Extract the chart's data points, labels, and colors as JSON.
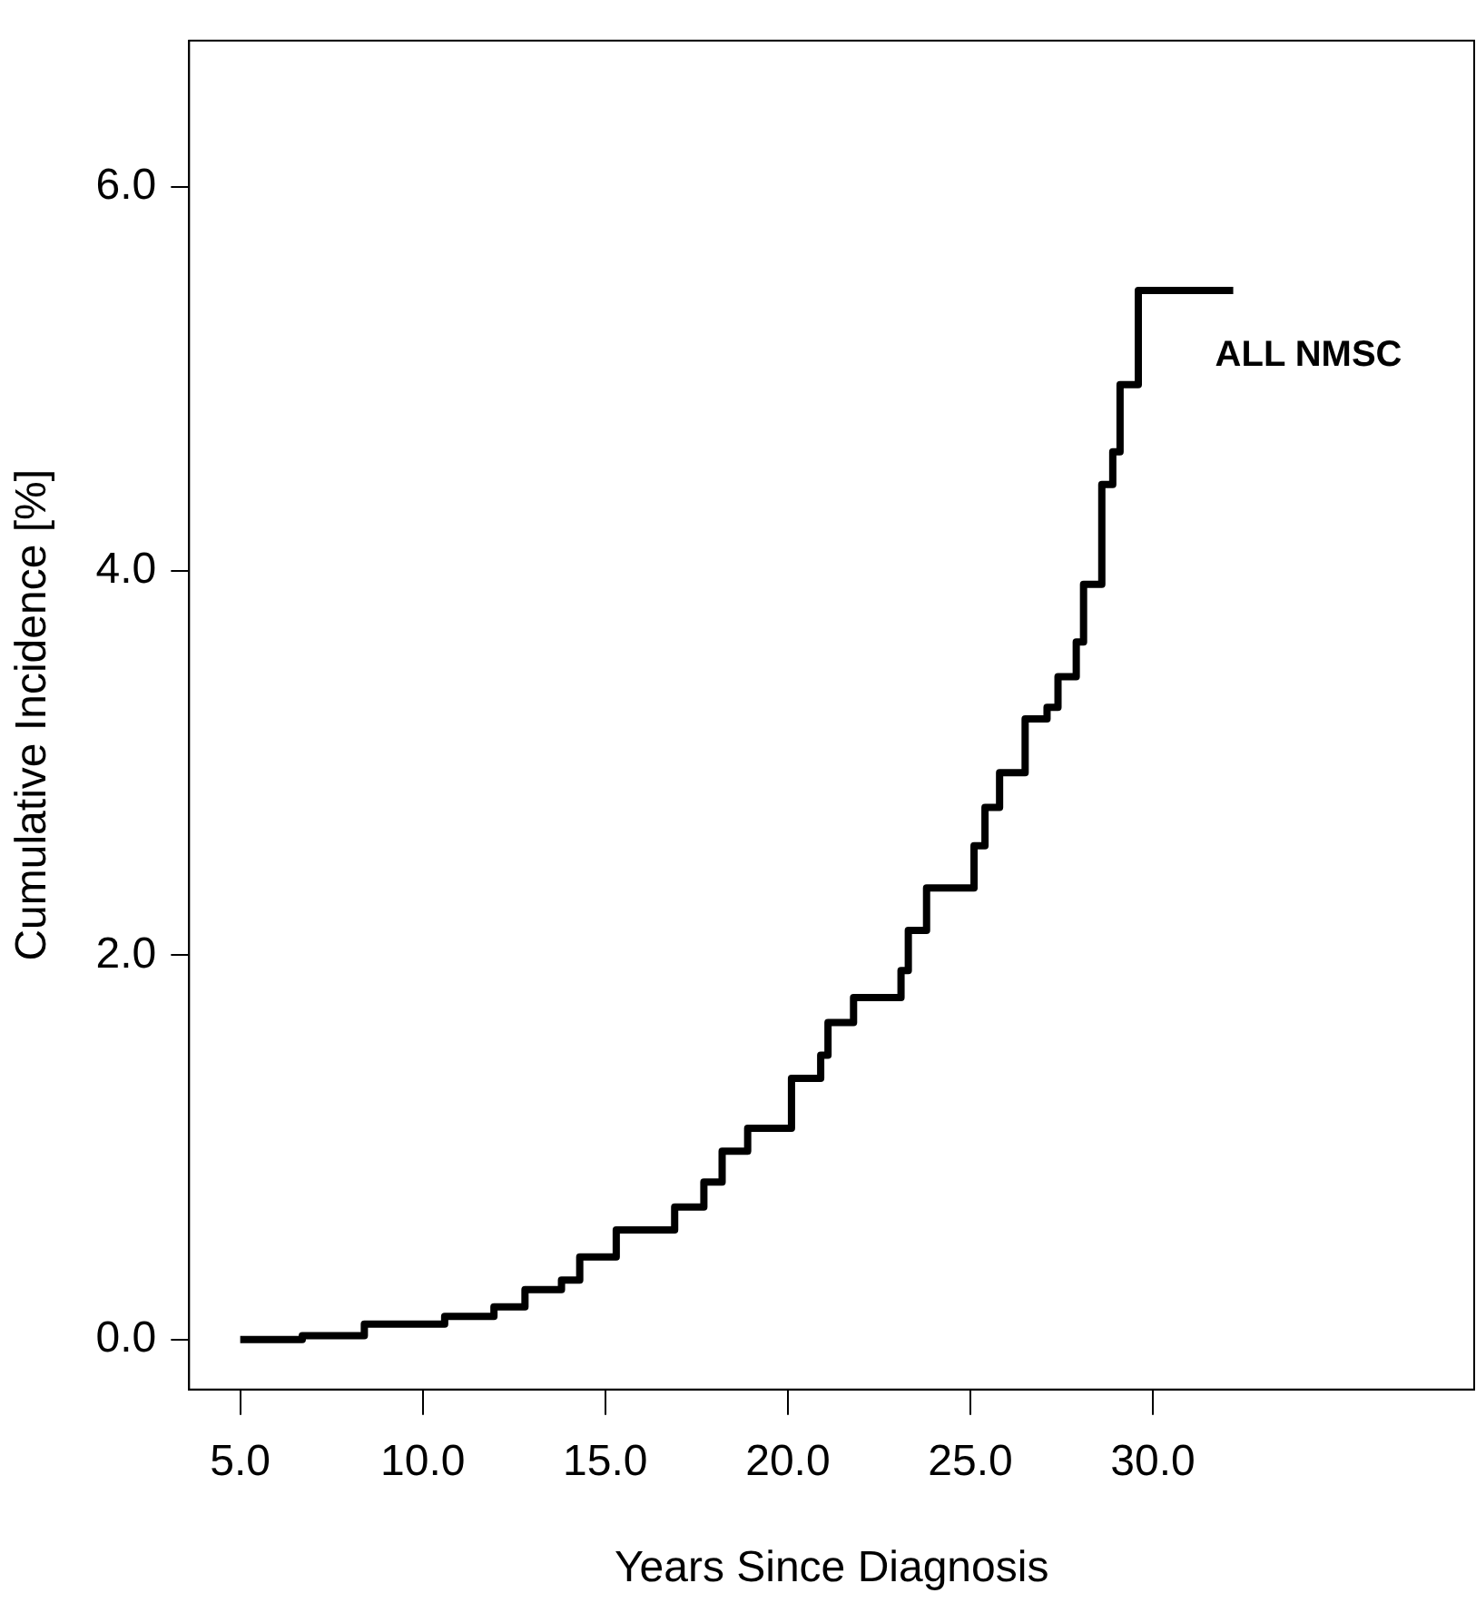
{
  "chart_data": {
    "type": "step",
    "xlabel": "Years Since Diagnosis",
    "ylabel": "Cumulative Incidence [%]",
    "x": [
      5,
      6.7,
      8.4,
      10.6,
      11.95,
      12.8,
      13.8,
      14.3,
      15.3,
      16.9,
      17.7,
      18.2,
      18.9,
      20.1,
      20.9,
      21.1,
      21.8,
      23.1,
      23.3,
      23.8,
      24.5,
      25.1,
      25.4,
      25.8,
      26.5,
      27.1,
      27.4,
      27.9,
      28.1,
      28.6,
      28.9,
      29.1,
      29.6,
      32.2
    ],
    "values": [
      0,
      0.02,
      0.08,
      0.12,
      0.17,
      0.26,
      0.31,
      0.43,
      0.57,
      0.69,
      0.82,
      0.98,
      1.1,
      1.36,
      1.48,
      1.65,
      1.78,
      1.92,
      2.13,
      2.35,
      2.35,
      2.57,
      2.77,
      2.95,
      3.23,
      3.29,
      3.45,
      3.63,
      3.93,
      4.45,
      4.62,
      4.97,
      5.46,
      5.46
    ],
    "color": "#000000",
    "xlim": [
      3.6,
      38.8
    ],
    "ylim": [
      -0.26,
      6.76
    ],
    "xticks": [
      {
        "value": 5,
        "label": "5.0"
      },
      {
        "value": 10,
        "label": "10.0"
      },
      {
        "value": 15,
        "label": "15.0"
      },
      {
        "value": 20,
        "label": "20.0"
      },
      {
        "value": 25,
        "label": "25.0"
      },
      {
        "value": 30,
        "label": "30.0"
      }
    ],
    "yticks": [
      {
        "value": 0,
        "label": "0.0"
      },
      {
        "value": 2,
        "label": "2.0"
      },
      {
        "value": 4,
        "label": "4.0"
      },
      {
        "value": 6,
        "label": "6.0"
      }
    ],
    "annotations": [
      "ALL NMSC"
    ],
    "legend": false,
    "grid": false,
    "marker": "none",
    "line_style": "solid"
  }
}
